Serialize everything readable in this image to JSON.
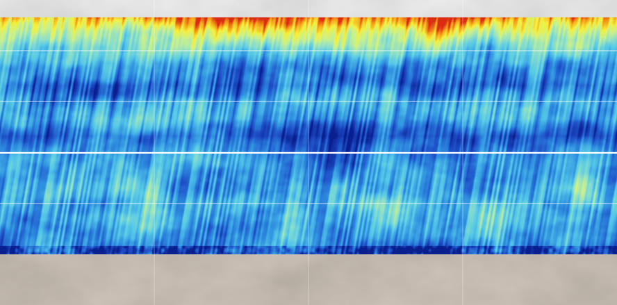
{
  "chart_data": {
    "type": "heatmap",
    "title": "",
    "xlabel": "",
    "ylabel": "",
    "colormap": [
      "#0a1f8f",
      "#1e4fc8",
      "#2f8fe0",
      "#55c8e8",
      "#8fe0c8",
      "#c8f08f",
      "#f5f03c",
      "#f5a019",
      "#dc2d14"
    ],
    "background_land": "#d2c8bd",
    "background_ice": "#f2f2f2",
    "grid": true,
    "grid_color": "#ffffff",
    "latitude_band_profile": [
      {
        "lat": 90,
        "level": null
      },
      {
        "lat": 80,
        "level": 0.85
      },
      {
        "lat": 70,
        "level": 0.62
      },
      {
        "lat": 60,
        "level": 0.45
      },
      {
        "lat": 50,
        "level": 0.25
      },
      {
        "lat": 40,
        "level": 0.2
      },
      {
        "lat": 30,
        "level": 0.35
      },
      {
        "lat": 20,
        "level": 0.35
      },
      {
        "lat": 10,
        "level": 0.15
      },
      {
        "lat": 0,
        "level": 0.2
      },
      {
        "lat": -10,
        "level": 0.3
      },
      {
        "lat": -20,
        "level": 0.4
      },
      {
        "lat": -30,
        "level": 0.4
      },
      {
        "lat": -40,
        "level": 0.35
      },
      {
        "lat": -50,
        "level": 0.3
      },
      {
        "lat": -60,
        "level": 0.2
      },
      {
        "lat": -70,
        "level": null
      },
      {
        "lat": -90,
        "level": null
      }
    ]
  }
}
